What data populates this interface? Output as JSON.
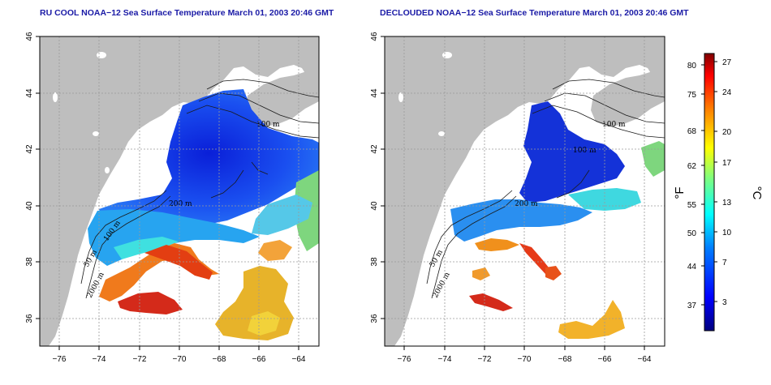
{
  "titles": {
    "left": "RU COOL NOAA−12 Sea Surface Temperature March 01, 2003 20:46 GMT",
    "right": "DECLOUDED NOAA−12 Sea Surface Temperature March 01, 2003 20:46 GMT"
  },
  "axes": {
    "lat_ticks": [
      "46",
      "44",
      "42",
      "40",
      "38",
      "36"
    ],
    "lon_ticks": [
      "−76",
      "−74",
      "−72",
      "−70",
      "−68",
      "−66",
      "−64"
    ]
  },
  "contour_labels": {
    "left": [
      "100 m",
      "200 m",
      "2000 m",
      "100 m",
      "50 m"
    ],
    "right": [
      "100 m",
      "200 m",
      "2000 m",
      "100 m",
      "50 m"
    ]
  },
  "colorbar": {
    "fahrenheit_label": "°F",
    "celsius_label": "°C",
    "fahrenheit_ticks": [
      "80",
      "75",
      "68",
      "62",
      "55",
      "50",
      "44",
      "37"
    ],
    "celsius_ticks": [
      "27",
      "24",
      "20",
      "17",
      "13",
      "10",
      "7",
      "3"
    ],
    "colors": [
      "#00007f",
      "#0000ff",
      "#007fff",
      "#00ffff",
      "#7fff7f",
      "#ffff00",
      "#ff7f00",
      "#ff0000",
      "#7f0000"
    ]
  },
  "colors": {
    "land": "#bebebe",
    "title": "#1a1aa6",
    "grid": "#9a9a9a"
  }
}
